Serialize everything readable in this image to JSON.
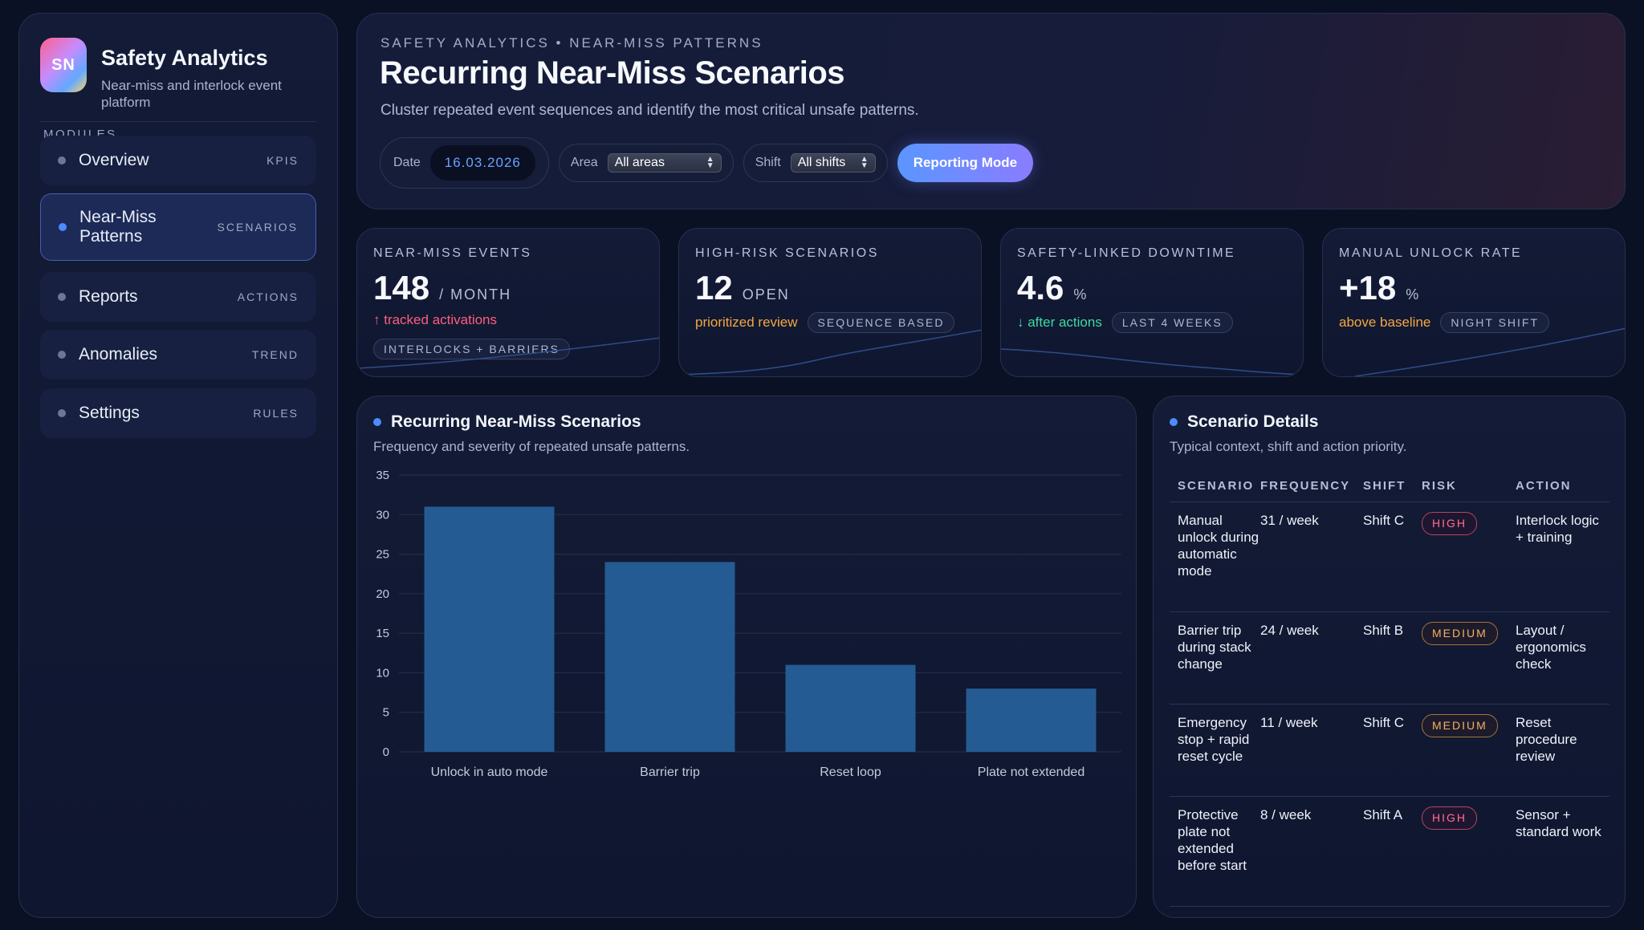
{
  "brand": {
    "logo_text": "SN",
    "title": "Safety Analytics",
    "subtitle": "Near-miss and interlock event platform"
  },
  "sidebar": {
    "section_label": "MODULES",
    "items": [
      {
        "label": "Overview",
        "tag": "KPIS",
        "active": false
      },
      {
        "label": "Near-Miss Patterns",
        "tag": "SCENARIOS",
        "active": true
      },
      {
        "label": "Reports",
        "tag": "ACTIONS",
        "active": false
      },
      {
        "label": "Anomalies",
        "tag": "TREND",
        "active": false
      },
      {
        "label": "Settings",
        "tag": "RULES",
        "active": false
      }
    ]
  },
  "header": {
    "breadcrumb": "SAFETY ANALYTICS • NEAR-MISS PATTERNS",
    "title": "Recurring Near-Miss Scenarios",
    "description": "Cluster repeated event sequences and identify the most critical unsafe patterns.",
    "filters": {
      "date_label": "Date",
      "date_value": "16.03.2026",
      "area_label": "Area",
      "area_value": "All areas",
      "shift_label": "Shift",
      "shift_value": "All shifts"
    },
    "reporting_button": "Reporting Mode"
  },
  "kpis": [
    {
      "label": "NEAR-MISS EVENTS",
      "value": "148",
      "unit": "/ MONTH",
      "note": "↑ tracked activations",
      "note_color": "#ff5d7d",
      "chip": "INTERLOCKS + BARRIERS"
    },
    {
      "label": "HIGH-RISK SCENARIOS",
      "value": "12",
      "unit": "OPEN",
      "note": "prioritized review",
      "note_color": "#f5a742",
      "chip": "SEQUENCE BASED"
    },
    {
      "label": "SAFETY-LINKED DOWNTIME",
      "value": "4.6",
      "unit": "%",
      "note": "↓ after actions",
      "note_color": "#3ed9a0",
      "chip": "LAST 4 WEEKS"
    },
    {
      "label": "MANUAL UNLOCK RATE",
      "value": "+18",
      "unit": "%",
      "note": "above baseline",
      "note_color": "#f5a742",
      "chip": "NIGHT SHIFT"
    }
  ],
  "chart_section": {
    "title": "Recurring Near-Miss Scenarios",
    "subtitle": "Frequency and severity of repeated unsafe patterns."
  },
  "chart_data": {
    "type": "bar",
    "categories": [
      "Unlock in auto mode",
      "Barrier trip",
      "Reset loop",
      "Plate not extended"
    ],
    "values": [
      31,
      24,
      11,
      8
    ],
    "ylim": [
      0,
      35
    ],
    "yticks": [
      0,
      5,
      10,
      15,
      20,
      25,
      30,
      35
    ],
    "grid": true,
    "bar_color": "#245b92"
  },
  "details": {
    "title": "Scenario Details",
    "subtitle": "Typical context, shift and action priority.",
    "columns": [
      "SCENARIO",
      "FREQUENCY",
      "SHIFT",
      "RISK",
      "ACTION"
    ],
    "rows": [
      {
        "scenario": "Manual unlock during automatic mode",
        "frequency": "31 / week",
        "shift": "Shift C",
        "risk": "HIGH",
        "level": "high",
        "action": "Interlock logic + training"
      },
      {
        "scenario": "Barrier trip during stack change",
        "frequency": "24 / week",
        "shift": "Shift B",
        "risk": "MEDIUM",
        "level": "medium",
        "action": "Layout / ergonomics check"
      },
      {
        "scenario": "Emergency stop + rapid reset cycle",
        "frequency": "11 / week",
        "shift": "Shift C",
        "risk": "MEDIUM",
        "level": "medium",
        "action": "Reset procedure review"
      },
      {
        "scenario": "Protective plate not extended before start",
        "frequency": "8 / week",
        "shift": "Shift A",
        "risk": "HIGH",
        "level": "high",
        "action": "Sensor + standard work"
      }
    ]
  }
}
